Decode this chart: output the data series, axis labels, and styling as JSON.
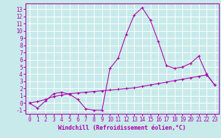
{
  "xlabel": "Windchill (Refroidissement éolien,°C)",
  "x_values": [
    0,
    1,
    2,
    3,
    4,
    5,
    6,
    7,
    8,
    9,
    10,
    11,
    12,
    13,
    14,
    15,
    16,
    17,
    18,
    19,
    20,
    21,
    22,
    23
  ],
  "line1_y": [
    0.0,
    -0.7,
    0.3,
    1.3,
    1.5,
    1.2,
    0.5,
    -0.8,
    -1.0,
    -1.0,
    4.8,
    6.2,
    9.5,
    12.2,
    13.2,
    11.5,
    8.5,
    5.2,
    4.8,
    5.0,
    5.5,
    6.5,
    4.0,
    2.5
  ],
  "line2_y": [
    0.0,
    0.2,
    0.5,
    0.9,
    1.1,
    1.3,
    1.4,
    1.5,
    1.6,
    1.7,
    1.8,
    1.9,
    2.0,
    2.1,
    2.3,
    2.5,
    2.7,
    2.9,
    3.1,
    3.3,
    3.5,
    3.7,
    3.9,
    2.5
  ],
  "line_color": "#aa00aa",
  "bg_color": "#c8eaea",
  "grid_color": "#ffffff",
  "ylim": [
    -1.5,
    13.8
  ],
  "xlim": [
    -0.5,
    23.5
  ],
  "yticks": [
    -1,
    0,
    1,
    2,
    3,
    4,
    5,
    6,
    7,
    8,
    9,
    10,
    11,
    12,
    13
  ],
  "xticks": [
    0,
    1,
    2,
    3,
    4,
    5,
    6,
    7,
    8,
    9,
    10,
    11,
    12,
    13,
    14,
    15,
    16,
    17,
    18,
    19,
    20,
    21,
    22,
    23
  ],
  "label_fontsize": 6.0,
  "tick_fontsize": 5.5,
  "marker": "+"
}
